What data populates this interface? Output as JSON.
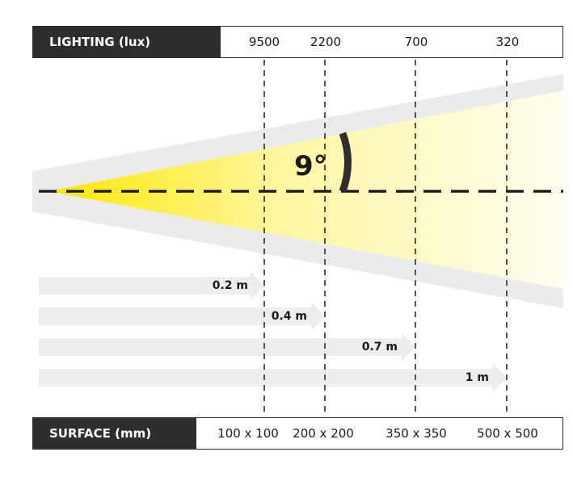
{
  "lighting": {
    "label": "LIGHTING (lux)",
    "values": [
      "9500",
      "2200",
      "700",
      "320"
    ]
  },
  "surface": {
    "label": "SURFACE (mm)",
    "values": [
      "100 x 100",
      "200 x 200",
      "350 x 350",
      "500 x 500"
    ]
  },
  "beam_angle": "9°",
  "distances": [
    "0.2 m",
    "0.4 m",
    "0.7 m",
    "1 m"
  ],
  "colors": {
    "dark": "#2e2e2e",
    "beam_yellow": "#fde800",
    "beam_fade": "#fffdf0",
    "cone_grey": "#ebebeb",
    "arrow_grey": "#ededed"
  }
}
